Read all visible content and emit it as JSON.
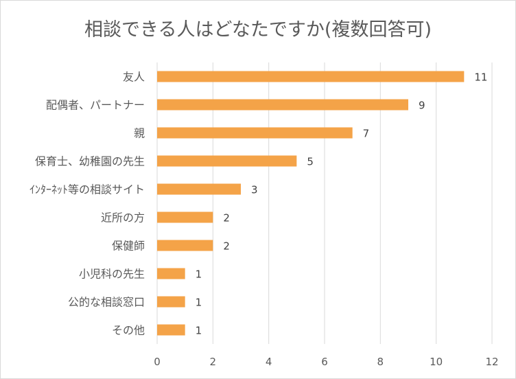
{
  "chart_data": {
    "type": "bar",
    "orientation": "horizontal",
    "title": "相談できる人はどなたですか(複数回答可)",
    "categories": [
      "友人",
      "配偶者、パートナー",
      "親",
      "保育士、幼稚園の先生",
      "ｲﾝﾀｰﾈｯﾄ等の相談サイト",
      "近所の方",
      "保健師",
      "小児科の先生",
      "公的な相談窓口",
      "その他"
    ],
    "values": [
      11,
      9,
      7,
      5,
      3,
      2,
      2,
      1,
      1,
      1
    ],
    "xlim": [
      0,
      12
    ],
    "xticks": [
      0,
      2,
      4,
      6,
      8,
      10,
      12
    ],
    "xlabel": "",
    "ylabel": "",
    "gridlines": "vertical",
    "data_labels": true,
    "legend": "none",
    "bar_color": "#F4A348"
  }
}
